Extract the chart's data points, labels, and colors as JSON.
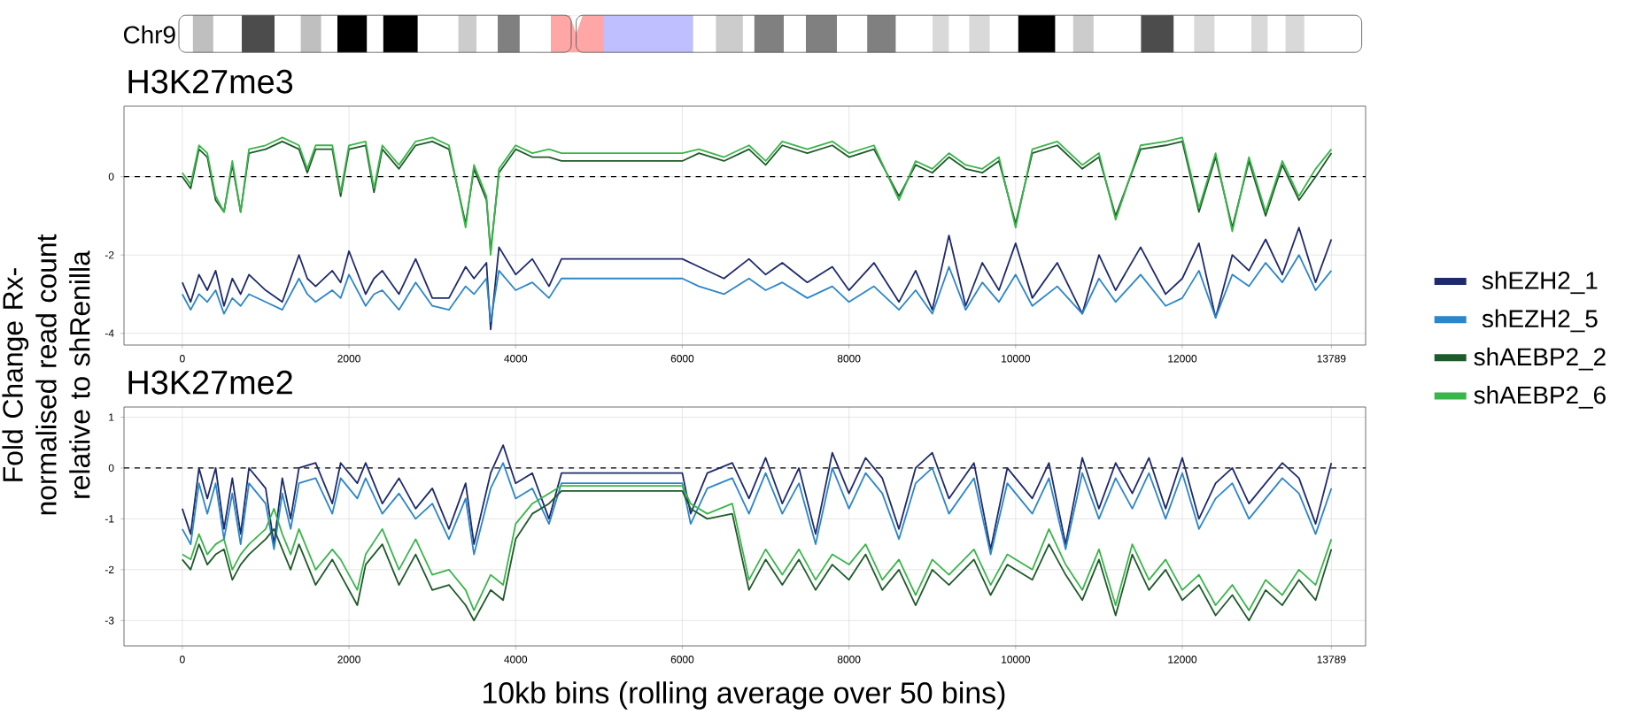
{
  "chart_data": [
    {
      "type": "line",
      "title": "H3K27me3",
      "ylabel": "Fold Change Rx-normalised read count relative to shRenilla",
      "annotations": [
        "Chr9"
      ],
      "x": [
        0,
        100,
        200,
        300,
        400,
        500,
        600,
        700,
        800,
        1000,
        1200,
        1400,
        1500,
        1600,
        1800,
        1900,
        2000,
        2200,
        2300,
        2400,
        2600,
        2800,
        3000,
        3200,
        3400,
        3500,
        3650,
        3700,
        3800,
        4000,
        4200,
        4400,
        4550,
        6000,
        6200,
        6500,
        6800,
        7000,
        7200,
        7500,
        7800,
        8000,
        8300,
        8600,
        8800,
        9000,
        9200,
        9400,
        9600,
        9800,
        10000,
        10200,
        10500,
        10800,
        11000,
        11200,
        11500,
        11800,
        12000,
        12200,
        12400,
        12600,
        12800,
        13000,
        13200,
        13400,
        13600,
        13789
      ],
      "xlim": [
        -700,
        14200
      ],
      "xticks": [
        0,
        2000,
        4000,
        6000,
        8000,
        10000,
        12000,
        13789
      ],
      "ylim": [
        -4.3,
        1.8
      ],
      "yticks": [
        -4,
        -2,
        0
      ],
      "grid": true,
      "ref_lines": [
        {
          "axis": "y",
          "value": 0,
          "line_style": "dashed"
        }
      ],
      "series": [
        {
          "color": "#1f2a6b",
          "values": [
            -2.7,
            -3.2,
            -2.5,
            -2.9,
            -2.4,
            -3.3,
            -2.6,
            -3.0,
            -2.5,
            -2.9,
            -3.2,
            -2.0,
            -2.6,
            -2.8,
            -2.4,
            -2.7,
            -1.9,
            -3.0,
            -2.6,
            -2.4,
            -3.0,
            -2.1,
            -3.1,
            -3.1,
            -2.3,
            -2.6,
            -2.2,
            -3.9,
            -1.8,
            -2.5,
            -2.1,
            -2.8,
            -2.1,
            -2.1,
            -2.3,
            -2.6,
            -2.1,
            -2.5,
            -2.2,
            -2.7,
            -2.3,
            -2.9,
            -2.2,
            -3.2,
            -2.4,
            -3.4,
            -1.5,
            -3.3,
            -2.2,
            -2.9,
            -1.7,
            -3.1,
            -2.2,
            -3.5,
            -2.0,
            -2.9,
            -1.8,
            -3.0,
            -2.6,
            -1.7,
            -3.6,
            -2.0,
            -2.4,
            -1.6,
            -2.5,
            -1.3,
            -2.7,
            -1.6
          ]
        },
        {
          "color": "#2c86c8",
          "values": [
            -3.0,
            -3.4,
            -3.0,
            -3.2,
            -2.9,
            -3.5,
            -3.1,
            -3.3,
            -3.0,
            -3.2,
            -3.4,
            -2.6,
            -3.0,
            -3.2,
            -2.9,
            -3.1,
            -2.5,
            -3.3,
            -3.0,
            -2.9,
            -3.4,
            -2.7,
            -3.3,
            -3.4,
            -2.8,
            -3.0,
            -2.6,
            -3.7,
            -2.4,
            -2.9,
            -2.7,
            -3.1,
            -2.6,
            -2.6,
            -2.8,
            -3.0,
            -2.6,
            -2.9,
            -2.7,
            -3.1,
            -2.8,
            -3.2,
            -2.8,
            -3.4,
            -2.9,
            -3.5,
            -2.3,
            -3.4,
            -2.7,
            -3.2,
            -2.5,
            -3.3,
            -2.8,
            -3.5,
            -2.6,
            -3.2,
            -2.5,
            -3.3,
            -3.1,
            -2.4,
            -3.6,
            -2.5,
            -2.8,
            -2.2,
            -2.7,
            -2.0,
            -2.9,
            -2.4
          ]
        },
        {
          "color": "#1e5a2a",
          "values": [
            0.0,
            -0.3,
            0.7,
            0.5,
            -0.6,
            -0.9,
            0.3,
            -0.9,
            0.6,
            0.7,
            0.9,
            0.7,
            0.1,
            0.7,
            0.7,
            -0.5,
            0.7,
            0.8,
            -0.4,
            0.7,
            0.2,
            0.8,
            0.9,
            0.7,
            -1.2,
            0.2,
            -0.6,
            -1.9,
            0.1,
            0.7,
            0.5,
            0.5,
            0.4,
            0.4,
            0.6,
            0.4,
            0.7,
            0.3,
            0.8,
            0.6,
            0.8,
            0.5,
            0.7,
            -0.5,
            0.3,
            0.1,
            0.5,
            0.2,
            0.1,
            0.4,
            -1.2,
            0.6,
            0.8,
            0.2,
            0.5,
            -1.0,
            0.7,
            0.8,
            0.9,
            -0.9,
            0.5,
            -1.3,
            0.4,
            -1.0,
            0.3,
            -0.6,
            0.0,
            0.6
          ]
        },
        {
          "color": "#3ab54a",
          "values": [
            0.1,
            -0.2,
            0.8,
            0.6,
            -0.5,
            -0.9,
            0.4,
            -0.9,
            0.7,
            0.8,
            1.0,
            0.8,
            0.2,
            0.8,
            0.8,
            -0.4,
            0.8,
            0.9,
            -0.3,
            0.8,
            0.3,
            0.9,
            1.0,
            0.8,
            -1.3,
            0.3,
            -0.5,
            -2.0,
            0.2,
            0.8,
            0.6,
            0.7,
            0.6,
            0.6,
            0.7,
            0.5,
            0.8,
            0.4,
            0.9,
            0.7,
            0.9,
            0.6,
            0.8,
            -0.6,
            0.4,
            0.2,
            0.6,
            0.3,
            0.2,
            0.5,
            -1.3,
            0.7,
            0.9,
            0.3,
            0.6,
            -1.1,
            0.8,
            0.9,
            1.0,
            -0.8,
            0.6,
            -1.4,
            0.5,
            -0.9,
            0.4,
            -0.5,
            0.2,
            0.7
          ]
        }
      ]
    },
    {
      "type": "line",
      "title": "H3K27me2",
      "xlabel": "10kb bins (rolling average over 50 bins)",
      "x": [
        0,
        100,
        200,
        300,
        400,
        500,
        600,
        700,
        800,
        1000,
        1100,
        1200,
        1300,
        1400,
        1600,
        1800,
        1900,
        2100,
        2200,
        2400,
        2600,
        2800,
        3000,
        3200,
        3400,
        3500,
        3700,
        3850,
        4000,
        4200,
        4400,
        4550,
        6000,
        6100,
        6300,
        6600,
        6800,
        7000,
        7200,
        7400,
        7600,
        7800,
        8000,
        8200,
        8400,
        8600,
        8800,
        9000,
        9200,
        9500,
        9700,
        9900,
        10200,
        10400,
        10600,
        10800,
        11000,
        11200,
        11400,
        11600,
        11800,
        12000,
        12200,
        12400,
        12600,
        12800,
        13000,
        13200,
        13400,
        13600,
        13789
      ],
      "xlim": [
        -700,
        14200
      ],
      "xticks": [
        0,
        2000,
        4000,
        6000,
        8000,
        10000,
        12000,
        13789
      ],
      "ylim": [
        -3.5,
        1.2
      ],
      "yticks": [
        -3,
        -2,
        -1,
        0,
        1
      ],
      "grid": true,
      "legend": "right",
      "ref_lines": [
        {
          "axis": "y",
          "value": 0,
          "line_style": "dashed"
        }
      ],
      "series": [
        {
          "name": "shEZH2_1",
          "color": "#1f2a6b",
          "values": [
            -0.8,
            -1.3,
            0.0,
            -0.6,
            0.0,
            -1.2,
            -0.2,
            -1.3,
            0.0,
            -0.4,
            -1.5,
            -0.2,
            -1.0,
            0.0,
            0.1,
            -0.7,
            0.1,
            -0.3,
            0.1,
            -0.7,
            -0.2,
            -0.8,
            -0.4,
            -1.2,
            -0.3,
            -1.5,
            -0.1,
            0.45,
            -0.3,
            -0.1,
            -1.0,
            -0.1,
            -0.1,
            -0.9,
            -0.1,
            0.1,
            -0.6,
            0.2,
            -0.7,
            0.0,
            -1.3,
            0.3,
            -0.5,
            0.2,
            -0.2,
            -1.2,
            0.0,
            0.3,
            -0.6,
            0.1,
            -1.6,
            0.0,
            -0.6,
            0.1,
            -1.5,
            0.2,
            -0.8,
            0.1,
            -0.5,
            0.2,
            -0.8,
            0.2,
            -1.0,
            -0.3,
            0.0,
            -0.7,
            -0.3,
            0.1,
            -0.2,
            -1.1,
            0.1
          ]
        },
        {
          "name": "shEZH2_5",
          "color": "#2c86c8",
          "values": [
            -1.2,
            -1.5,
            -0.3,
            -0.9,
            -0.3,
            -1.4,
            -0.5,
            -1.5,
            -0.3,
            -0.7,
            -1.6,
            -0.5,
            -1.2,
            -0.3,
            -0.2,
            -0.9,
            -0.2,
            -0.6,
            -0.2,
            -0.9,
            -0.5,
            -1.0,
            -0.7,
            -1.4,
            -0.6,
            -1.7,
            -0.4,
            0.1,
            -0.6,
            -0.4,
            -1.1,
            -0.3,
            -0.3,
            -1.1,
            -0.4,
            -0.2,
            -0.9,
            -0.1,
            -0.9,
            -0.3,
            -1.5,
            0.0,
            -0.8,
            -0.1,
            -0.5,
            -1.4,
            -0.3,
            0.0,
            -0.9,
            -0.2,
            -1.7,
            -0.3,
            -0.9,
            -0.2,
            -1.6,
            -0.1,
            -1.0,
            -0.2,
            -0.8,
            -0.1,
            -1.0,
            -0.1,
            -1.2,
            -0.6,
            -0.3,
            -1.0,
            -0.6,
            -0.2,
            -0.5,
            -1.3,
            -0.4
          ]
        },
        {
          "name": "shAEBP2_2",
          "color": "#1e5a2a",
          "values": [
            -1.8,
            -2.0,
            -1.5,
            -1.9,
            -1.7,
            -1.6,
            -2.2,
            -1.9,
            -1.7,
            -1.4,
            -1.2,
            -1.6,
            -2.0,
            -1.5,
            -2.3,
            -1.8,
            -2.1,
            -2.7,
            -1.9,
            -1.5,
            -2.3,
            -1.7,
            -2.4,
            -2.3,
            -2.7,
            -3.0,
            -2.4,
            -2.6,
            -1.4,
            -0.9,
            -0.7,
            -0.45,
            -0.45,
            -0.8,
            -1.0,
            -0.9,
            -2.4,
            -1.8,
            -2.3,
            -1.8,
            -2.4,
            -1.9,
            -2.2,
            -1.7,
            -2.4,
            -2.0,
            -2.7,
            -2.0,
            -2.3,
            -1.8,
            -2.5,
            -1.9,
            -2.2,
            -1.5,
            -2.1,
            -2.6,
            -1.8,
            -2.9,
            -1.7,
            -2.4,
            -2.0,
            -2.6,
            -2.3,
            -2.9,
            -2.5,
            -3.0,
            -2.4,
            -2.7,
            -2.2,
            -2.6,
            -1.6
          ]
        },
        {
          "name": "shAEBP2_6",
          "color": "#3ab54a",
          "values": [
            -1.7,
            -1.8,
            -1.3,
            -1.7,
            -1.5,
            -1.4,
            -2.0,
            -1.7,
            -1.5,
            -1.2,
            -0.8,
            -1.3,
            -1.7,
            -1.2,
            -2.0,
            -1.6,
            -1.8,
            -2.4,
            -1.7,
            -1.2,
            -2.0,
            -1.4,
            -2.1,
            -2.0,
            -2.4,
            -2.8,
            -2.1,
            -2.3,
            -1.1,
            -0.7,
            -0.5,
            -0.35,
            -0.35,
            -0.7,
            -0.9,
            -0.7,
            -2.2,
            -1.6,
            -2.1,
            -1.6,
            -2.2,
            -1.7,
            -1.9,
            -1.5,
            -2.2,
            -1.8,
            -2.5,
            -1.8,
            -2.1,
            -1.6,
            -2.3,
            -1.7,
            -2.0,
            -1.2,
            -1.9,
            -2.4,
            -1.6,
            -2.7,
            -1.5,
            -2.2,
            -1.8,
            -2.4,
            -2.1,
            -2.7,
            -2.3,
            -2.8,
            -2.2,
            -2.5,
            -2.0,
            -2.3,
            -1.4
          ]
        }
      ]
    }
  ]
}
